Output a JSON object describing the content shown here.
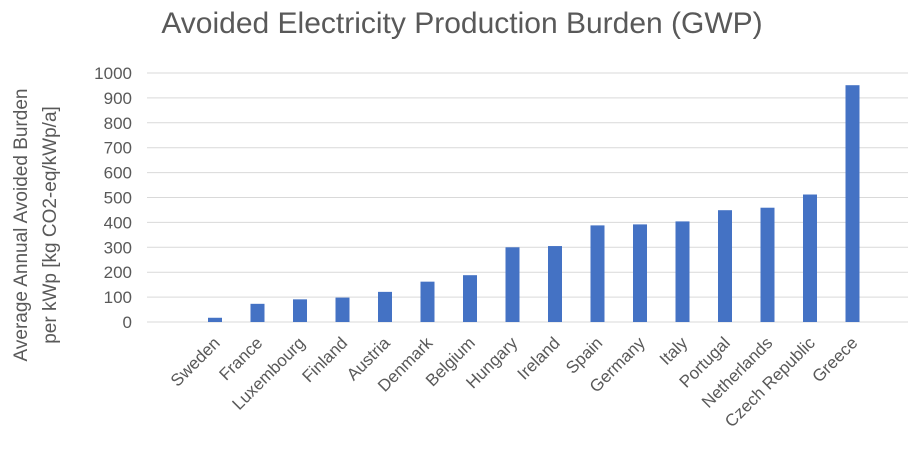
{
  "chart_data": {
    "type": "bar",
    "title": "Avoided Electricity Production Burden (GWP)",
    "xlabel": "",
    "ylabel_lines": [
      "Average Annual Avoided Burden",
      "per kWp [kg CO2-eq/kWp/a]"
    ],
    "categories": [
      "Sweden",
      "France",
      "Luxembourg",
      "Finland",
      "Austria",
      "Denmark",
      "Belgium",
      "Hungary",
      "Ireland",
      "Spain",
      "Germany",
      "Italy",
      "Portugal",
      "Netherlands",
      "Czech Republic",
      "Greece"
    ],
    "values": [
      17,
      73,
      91,
      98,
      121,
      162,
      188,
      300,
      305,
      388,
      392,
      404,
      449,
      459,
      512,
      951
    ],
    "ylim": [
      0,
      1000
    ],
    "yticks": [
      0,
      100,
      200,
      300,
      400,
      500,
      600,
      700,
      800,
      900,
      1000
    ],
    "grid": true,
    "legend": "none",
    "bar_color": "#4472C4"
  }
}
